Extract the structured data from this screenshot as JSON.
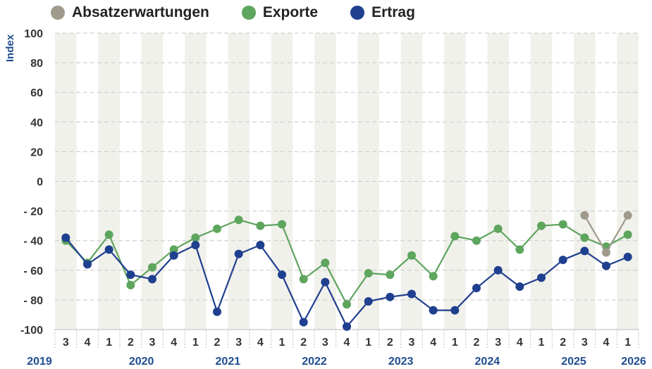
{
  "chart_data": {
    "type": "line",
    "ylabel": "Index",
    "ylim": [
      -100,
      100
    ],
    "yticks": [
      100,
      80,
      60,
      40,
      20,
      0,
      -20,
      -40,
      -60,
      -80,
      -100
    ],
    "ytick_labels": [
      "100",
      "80",
      "60",
      "40",
      "20",
      "0",
      "- 20",
      "- 40",
      "- 60",
      "- 80",
      "-100"
    ],
    "quarters": [
      "3",
      "4",
      "1",
      "2",
      "3",
      "4",
      "1",
      "2",
      "3",
      "4",
      "1",
      "2",
      "3",
      "4",
      "1",
      "2",
      "3",
      "4",
      "1",
      "2",
      "3",
      "4",
      "1",
      "2",
      "3",
      "4",
      "1"
    ],
    "year_labels": [
      {
        "label": "2019",
        "first": 0,
        "last": 1
      },
      {
        "label": "2020",
        "first": 2,
        "last": 5
      },
      {
        "label": "2021",
        "first": 6,
        "last": 9
      },
      {
        "label": "2022",
        "first": 10,
        "last": 13
      },
      {
        "label": "2023",
        "first": 14,
        "last": 17
      },
      {
        "label": "2024",
        "first": 18,
        "last": 21
      },
      {
        "label": "2025",
        "first": 22,
        "last": 25
      },
      {
        "label": "2026",
        "first": 26,
        "last": 26
      }
    ],
    "grid": true,
    "legend_position": "top-left",
    "series": [
      {
        "name": "Absatzerwartungen",
        "color": "#a09a8c",
        "start_index": 24,
        "values": [
          -23,
          -48,
          -23
        ]
      },
      {
        "name": "Exporte",
        "color": "#5ea55e",
        "start_index": 0,
        "values": [
          -40,
          -55,
          -36,
          -70,
          -58,
          -46,
          -38,
          -32,
          -26,
          -30,
          -29,
          -66,
          -55,
          -83,
          -62,
          -63,
          -50,
          -64,
          -37,
          -40,
          -32,
          -46,
          -30,
          -29,
          -38,
          -44,
          -36
        ]
      },
      {
        "name": "Ertrag",
        "color": "#1f3f8f",
        "start_index": 0,
        "values": [
          -38,
          -56,
          -46,
          -63,
          -66,
          -50,
          -43,
          -88,
          -49,
          -43,
          -63,
          -95,
          -68,
          -98,
          -81,
          -78,
          -76,
          -87,
          -87,
          -72,
          -60,
          -71,
          -65,
          -53,
          -47,
          -57,
          -51
        ]
      }
    ]
  }
}
